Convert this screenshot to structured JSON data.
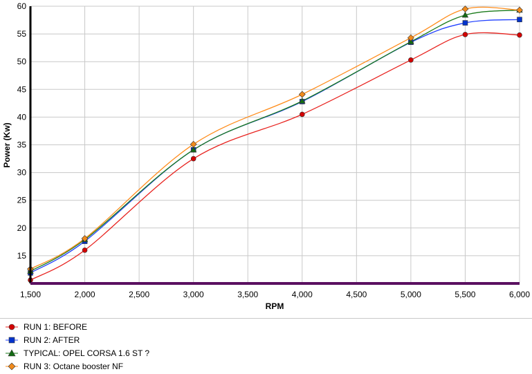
{
  "chart_data": {
    "type": "line",
    "title": "",
    "xlabel": "RPM",
    "ylabel": "Power (Kw)",
    "xlim": [
      1500,
      6000
    ],
    "ylim": [
      10,
      60
    ],
    "x_ticks": [
      1500,
      2000,
      2500,
      3000,
      3500,
      4000,
      4500,
      5000,
      5500,
      6000
    ],
    "x_tick_labels": [
      "1,500",
      "2,000",
      "2,500",
      "3,000",
      "3,500",
      "4,000",
      "4,500",
      "5,000",
      "5,500",
      "6,000"
    ],
    "y_ticks": [
      15,
      20,
      25,
      30,
      35,
      40,
      45,
      50,
      55,
      60
    ],
    "y_tick_labels": [
      "15",
      "20",
      "25",
      "30",
      "35",
      "40",
      "45",
      "50",
      "55",
      "60"
    ],
    "grid": true,
    "legend_position": "bottom",
    "x": [
      1500,
      2000,
      3000,
      4000,
      5000,
      5500,
      6000
    ],
    "series": [
      {
        "name": "RUN 1: BEFORE",
        "marker": "circle",
        "color": "#e8231f",
        "marker_color": "#d40000",
        "values": [
          10.6,
          16.0,
          32.5,
          40.5,
          50.3,
          54.9,
          54.8
        ]
      },
      {
        "name": "RUN 2: AFTER",
        "marker": "square",
        "color": "#1f3fff",
        "marker_color": "#0033cc",
        "values": [
          11.9,
          17.6,
          34.1,
          42.8,
          53.5,
          57.0,
          57.6
        ]
      },
      {
        "name": "TYPICAL: OPEL CORSA 1.6 ST ?",
        "marker": "triangle",
        "color": "#1a7a1a",
        "marker_color": "#136b13",
        "values": [
          12.2,
          17.9,
          34.1,
          42.9,
          53.6,
          58.4,
          59.3
        ]
      },
      {
        "name": "RUN 3: Octane booster NF",
        "marker": "diamond",
        "color": "#ff8c1a",
        "marker_color": "#f08a1c",
        "values": [
          12.6,
          18.1,
          35.1,
          44.1,
          54.3,
          59.5,
          59.3
        ]
      }
    ]
  }
}
